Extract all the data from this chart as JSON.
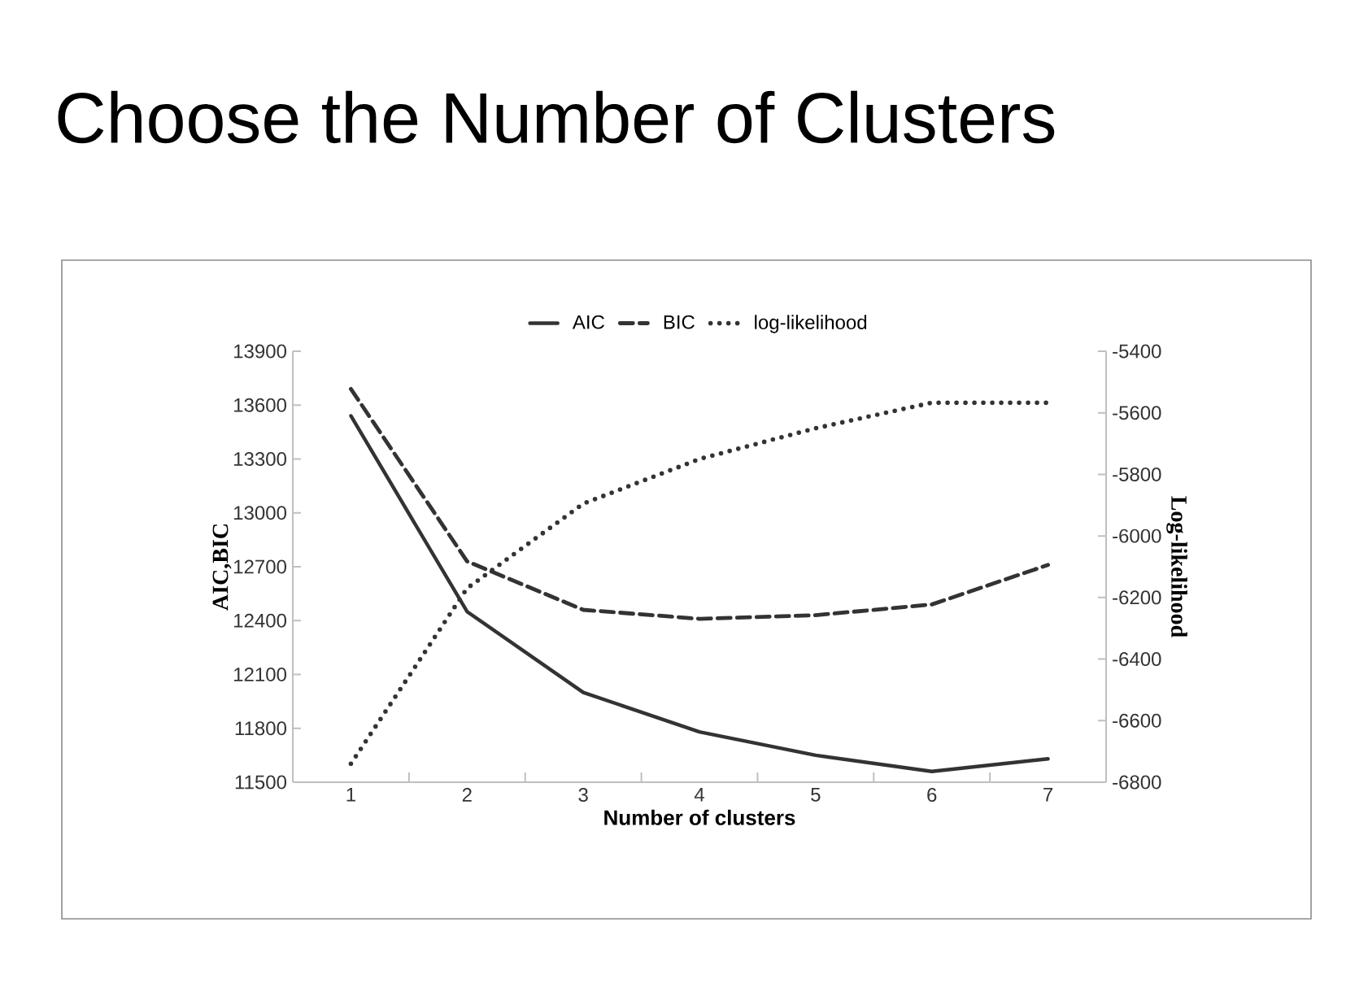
{
  "chart_data": {
    "type": "line",
    "title": "Choose the Number of Clusters",
    "xlabel": "Number of clusters",
    "ylabel": "AIC,BIC",
    "y2label": "Log-likelihood",
    "categories": [
      "1",
      "2",
      "3",
      "4",
      "5",
      "6",
      "7"
    ],
    "series": [
      {
        "name": "AIC",
        "color": "#333333",
        "line_style": "solid",
        "values": [
          13540,
          12450,
          12000,
          11780,
          11650,
          11560,
          11630
        ]
      },
      {
        "name": "BIC",
        "color": "#333333",
        "line_style": "dashed",
        "values": [
          13690,
          12730,
          12460,
          12410,
          12430,
          12490,
          12710
        ]
      },
      {
        "name": "log-likelihood",
        "color": "#333333",
        "line_style": "dotted",
        "axis": "y2",
        "values": [
          -6740,
          -6170,
          -5895,
          -5750,
          -5650,
          -5567,
          -5567
        ]
      }
    ],
    "ylim": [
      11500,
      13900
    ],
    "yticks": [
      11500,
      11800,
      12100,
      12400,
      12700,
      13000,
      13300,
      13600,
      13900
    ],
    "y2lim": [
      -6800,
      -5400
    ],
    "y2ticks": [
      -6800,
      -6600,
      -6400,
      -6200,
      -6000,
      -5800,
      -5600,
      -5400
    ],
    "legend": "top",
    "grid": false,
    "marker": "none"
  }
}
